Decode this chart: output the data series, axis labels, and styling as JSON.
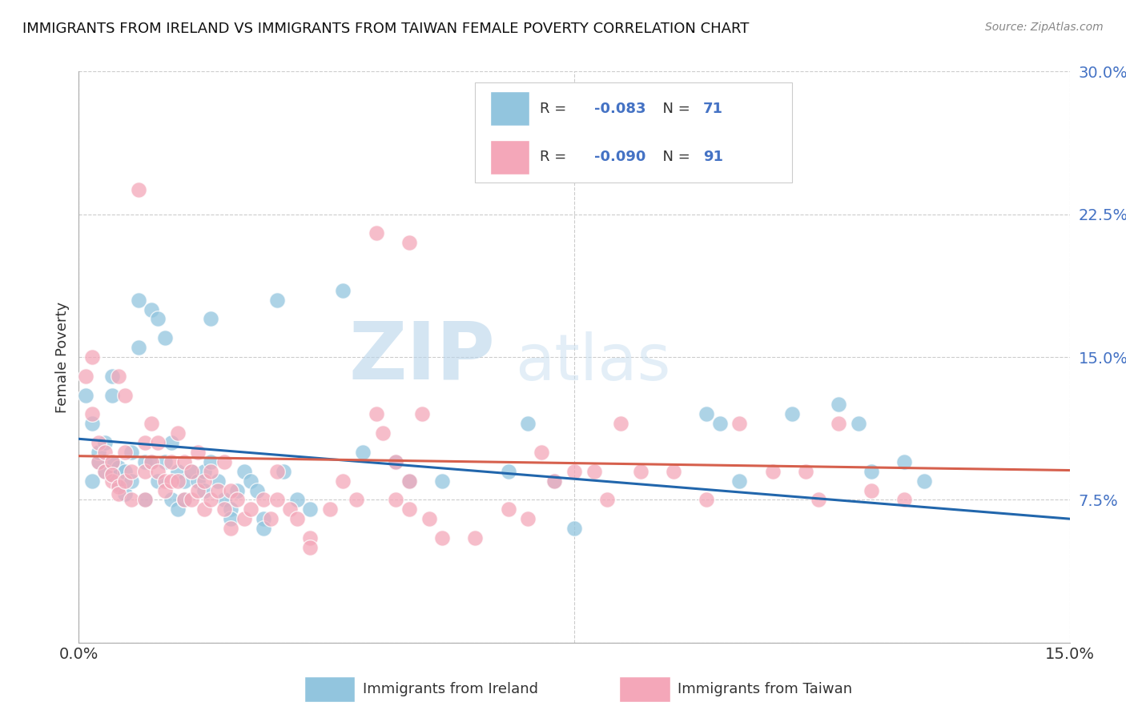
{
  "title": "IMMIGRANTS FROM IRELAND VS IMMIGRANTS FROM TAIWAN FEMALE POVERTY CORRELATION CHART",
  "source": "Source: ZipAtlas.com",
  "ylabel": "Female Poverty",
  "xlim": [
    0.0,
    0.15
  ],
  "ylim": [
    0.0,
    0.3
  ],
  "ireland_color": "#92c5de",
  "taiwan_color": "#f4a7b9",
  "ireland_line_color": "#2166ac",
  "taiwan_line_color": "#d6604d",
  "ireland_R": "-0.083",
  "ireland_N": "71",
  "taiwan_R": "-0.090",
  "taiwan_N": "91",
  "watermark_zip": "ZIP",
  "watermark_atlas": "atlas",
  "ireland_intercept": 0.107,
  "ireland_slope": -0.28,
  "taiwan_intercept": 0.098,
  "taiwan_slope": -0.05,
  "ireland_points": [
    [
      0.001,
      0.13
    ],
    [
      0.002,
      0.115
    ],
    [
      0.002,
      0.085
    ],
    [
      0.003,
      0.095
    ],
    [
      0.003,
      0.1
    ],
    [
      0.004,
      0.09
    ],
    [
      0.004,
      0.105
    ],
    [
      0.005,
      0.14
    ],
    [
      0.005,
      0.13
    ],
    [
      0.005,
      0.095
    ],
    [
      0.005,
      0.088
    ],
    [
      0.006,
      0.092
    ],
    [
      0.006,
      0.083
    ],
    [
      0.007,
      0.09
    ],
    [
      0.007,
      0.078
    ],
    [
      0.008,
      0.1
    ],
    [
      0.008,
      0.085
    ],
    [
      0.009,
      0.18
    ],
    [
      0.009,
      0.155
    ],
    [
      0.01,
      0.095
    ],
    [
      0.01,
      0.075
    ],
    [
      0.011,
      0.175
    ],
    [
      0.011,
      0.095
    ],
    [
      0.012,
      0.17
    ],
    [
      0.012,
      0.085
    ],
    [
      0.013,
      0.16
    ],
    [
      0.013,
      0.095
    ],
    [
      0.014,
      0.075
    ],
    [
      0.014,
      0.105
    ],
    [
      0.015,
      0.09
    ],
    [
      0.015,
      0.07
    ],
    [
      0.016,
      0.085
    ],
    [
      0.016,
      0.075
    ],
    [
      0.017,
      0.09
    ],
    [
      0.018,
      0.085
    ],
    [
      0.019,
      0.09
    ],
    [
      0.019,
      0.08
    ],
    [
      0.02,
      0.17
    ],
    [
      0.02,
      0.095
    ],
    [
      0.021,
      0.085
    ],
    [
      0.022,
      0.075
    ],
    [
      0.023,
      0.07
    ],
    [
      0.023,
      0.065
    ],
    [
      0.024,
      0.08
    ],
    [
      0.025,
      0.09
    ],
    [
      0.026,
      0.085
    ],
    [
      0.027,
      0.08
    ],
    [
      0.028,
      0.065
    ],
    [
      0.028,
      0.06
    ],
    [
      0.03,
      0.18
    ],
    [
      0.031,
      0.09
    ],
    [
      0.033,
      0.075
    ],
    [
      0.035,
      0.07
    ],
    [
      0.04,
      0.185
    ],
    [
      0.043,
      0.1
    ],
    [
      0.048,
      0.095
    ],
    [
      0.05,
      0.085
    ],
    [
      0.055,
      0.085
    ],
    [
      0.065,
      0.09
    ],
    [
      0.068,
      0.115
    ],
    [
      0.072,
      0.085
    ],
    [
      0.075,
      0.06
    ],
    [
      0.095,
      0.12
    ],
    [
      0.097,
      0.115
    ],
    [
      0.1,
      0.085
    ],
    [
      0.108,
      0.12
    ],
    [
      0.115,
      0.125
    ],
    [
      0.118,
      0.115
    ],
    [
      0.12,
      0.09
    ],
    [
      0.125,
      0.095
    ],
    [
      0.128,
      0.085
    ]
  ],
  "taiwan_points": [
    [
      0.001,
      0.14
    ],
    [
      0.002,
      0.15
    ],
    [
      0.002,
      0.12
    ],
    [
      0.003,
      0.105
    ],
    [
      0.003,
      0.095
    ],
    [
      0.004,
      0.09
    ],
    [
      0.004,
      0.1
    ],
    [
      0.005,
      0.085
    ],
    [
      0.005,
      0.095
    ],
    [
      0.005,
      0.088
    ],
    [
      0.006,
      0.082
    ],
    [
      0.006,
      0.14
    ],
    [
      0.006,
      0.078
    ],
    [
      0.007,
      0.13
    ],
    [
      0.007,
      0.1
    ],
    [
      0.007,
      0.085
    ],
    [
      0.008,
      0.09
    ],
    [
      0.008,
      0.075
    ],
    [
      0.009,
      0.238
    ],
    [
      0.01,
      0.105
    ],
    [
      0.01,
      0.09
    ],
    [
      0.01,
      0.075
    ],
    [
      0.011,
      0.115
    ],
    [
      0.011,
      0.095
    ],
    [
      0.012,
      0.105
    ],
    [
      0.012,
      0.09
    ],
    [
      0.013,
      0.085
    ],
    [
      0.013,
      0.08
    ],
    [
      0.014,
      0.095
    ],
    [
      0.014,
      0.085
    ],
    [
      0.015,
      0.11
    ],
    [
      0.015,
      0.085
    ],
    [
      0.016,
      0.095
    ],
    [
      0.016,
      0.075
    ],
    [
      0.017,
      0.09
    ],
    [
      0.017,
      0.075
    ],
    [
      0.018,
      0.1
    ],
    [
      0.018,
      0.08
    ],
    [
      0.019,
      0.085
    ],
    [
      0.019,
      0.07
    ],
    [
      0.02,
      0.09
    ],
    [
      0.02,
      0.075
    ],
    [
      0.021,
      0.08
    ],
    [
      0.022,
      0.095
    ],
    [
      0.022,
      0.07
    ],
    [
      0.023,
      0.08
    ],
    [
      0.023,
      0.06
    ],
    [
      0.024,
      0.075
    ],
    [
      0.025,
      0.065
    ],
    [
      0.026,
      0.07
    ],
    [
      0.028,
      0.075
    ],
    [
      0.029,
      0.065
    ],
    [
      0.03,
      0.09
    ],
    [
      0.03,
      0.075
    ],
    [
      0.032,
      0.07
    ],
    [
      0.033,
      0.065
    ],
    [
      0.035,
      0.055
    ],
    [
      0.035,
      0.05
    ],
    [
      0.038,
      0.07
    ],
    [
      0.04,
      0.085
    ],
    [
      0.042,
      0.075
    ],
    [
      0.045,
      0.215
    ],
    [
      0.045,
      0.12
    ],
    [
      0.046,
      0.11
    ],
    [
      0.048,
      0.095
    ],
    [
      0.048,
      0.075
    ],
    [
      0.05,
      0.21
    ],
    [
      0.05,
      0.085
    ],
    [
      0.05,
      0.07
    ],
    [
      0.052,
      0.12
    ],
    [
      0.053,
      0.065
    ],
    [
      0.055,
      0.055
    ],
    [
      0.06,
      0.055
    ],
    [
      0.065,
      0.07
    ],
    [
      0.068,
      0.065
    ],
    [
      0.07,
      0.1
    ],
    [
      0.072,
      0.085
    ],
    [
      0.075,
      0.09
    ],
    [
      0.078,
      0.09
    ],
    [
      0.08,
      0.075
    ],
    [
      0.082,
      0.115
    ],
    [
      0.085,
      0.09
    ],
    [
      0.09,
      0.09
    ],
    [
      0.095,
      0.075
    ],
    [
      0.1,
      0.115
    ],
    [
      0.105,
      0.09
    ],
    [
      0.11,
      0.09
    ],
    [
      0.112,
      0.075
    ],
    [
      0.115,
      0.115
    ],
    [
      0.12,
      0.08
    ],
    [
      0.125,
      0.075
    ]
  ]
}
